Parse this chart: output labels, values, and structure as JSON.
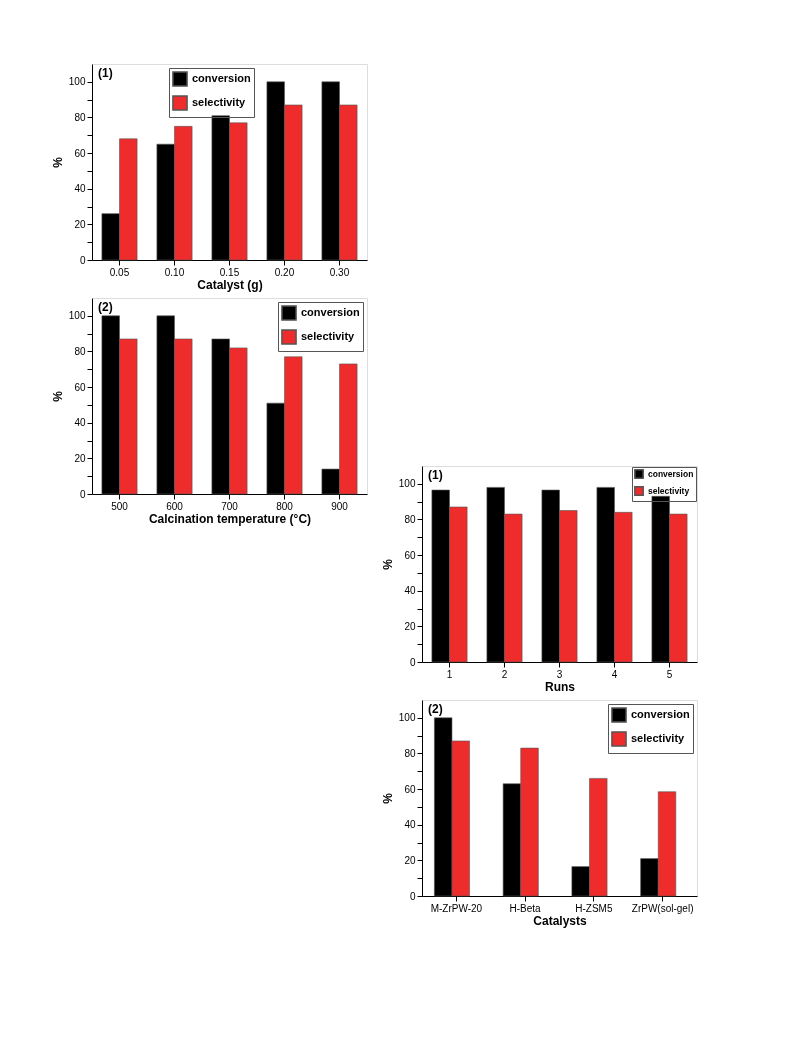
{
  "chart_data": [
    {
      "type": "bar",
      "annotations": [
        "(1)"
      ],
      "xlabel": "Catalyst (g)",
      "ylabel": "%",
      "categories": [
        "0.05",
        "0.10",
        "0.15",
        "0.20",
        "0.30"
      ],
      "series": [
        {
          "name": "conversion",
          "color": "#000000",
          "values": [
            26,
            65,
            81,
            100,
            100
          ]
        },
        {
          "name": "selectivity",
          "color": "#ee2c2c",
          "values": [
            68,
            75,
            77,
            87,
            87
          ]
        }
      ],
      "ylim": [
        0,
        110
      ],
      "yticks": [
        0,
        {
          "value": 10,
          "label": null
        },
        20,
        {
          "value": 30,
          "label": null
        },
        40,
        {
          "value": 50,
          "label": null
        },
        60,
        {
          "value": 70,
          "label": null
        },
        80,
        {
          "value": 90,
          "label": null
        },
        100
      ],
      "legend": "top left",
      "grid": false
    },
    {
      "type": "bar",
      "annotations": [
        "(2)"
      ],
      "xlabel": "Calcination temperature (°C)",
      "ylabel": "%",
      "categories": [
        "500",
        "600",
        "700",
        "800",
        "900"
      ],
      "series": [
        {
          "name": "conversion",
          "color": "#000000",
          "values": [
            100,
            100,
            87,
            51,
            14
          ]
        },
        {
          "name": "selectivity",
          "color": "#ee2c2c",
          "values": [
            87,
            87,
            82,
            77,
            73
          ]
        }
      ],
      "ylim": [
        0,
        110
      ],
      "yticks": [
        0,
        {
          "value": 10,
          "label": null
        },
        20,
        {
          "value": 30,
          "label": null
        },
        40,
        {
          "value": 50,
          "label": null
        },
        60,
        {
          "value": 70,
          "label": null
        },
        80,
        {
          "value": 90,
          "label": null
        },
        100
      ],
      "legend": "top right",
      "grid": false
    },
    {
      "type": "bar",
      "annotations": [
        "(1)"
      ],
      "xlabel": "Runs",
      "ylabel": "%",
      "categories": [
        "1",
        "2",
        "3",
        "4",
        "5"
      ],
      "series": [
        {
          "name": "conversion",
          "color": "#000000",
          "values": [
            96.5,
            98,
            96.5,
            98,
            93
          ]
        },
        {
          "name": "selectivity",
          "color": "#ee2c2c",
          "values": [
            87,
            83,
            85,
            84,
            83
          ]
        }
      ],
      "ylim": [
        0,
        110
      ],
      "yticks": [
        0,
        {
          "value": 10,
          "label": null
        },
        20,
        {
          "value": 30,
          "label": null
        },
        40,
        {
          "value": 50,
          "label": null
        },
        60,
        {
          "value": 70,
          "label": null
        },
        80,
        {
          "value": 90,
          "label": null
        },
        100
      ],
      "legend": "top right",
      "grid": false
    },
    {
      "type": "bar",
      "annotations": [
        "(2)"
      ],
      "xlabel": "Catalysts",
      "ylabel": "%",
      "categories": [
        "M-ZrPW-20",
        "H-Beta",
        "H-ZSM5",
        "ZrPW(sol-gel)"
      ],
      "series": [
        {
          "name": "conversion",
          "color": "#000000",
          "values": [
            100,
            63,
            16.5,
            21
          ]
        },
        {
          "name": "selectivity",
          "color": "#ee2c2c",
          "values": [
            87,
            83,
            66,
            58.5
          ]
        }
      ],
      "ylim": [
        0,
        110
      ],
      "yticks": [
        0,
        {
          "value": 10,
          "label": null
        },
        20,
        {
          "value": 30,
          "label": null
        },
        40,
        {
          "value": 50,
          "label": null
        },
        60,
        {
          "value": 70,
          "label": null
        },
        80,
        {
          "value": 90,
          "label": null
        },
        100
      ],
      "legend": "top right",
      "grid": false
    }
  ]
}
